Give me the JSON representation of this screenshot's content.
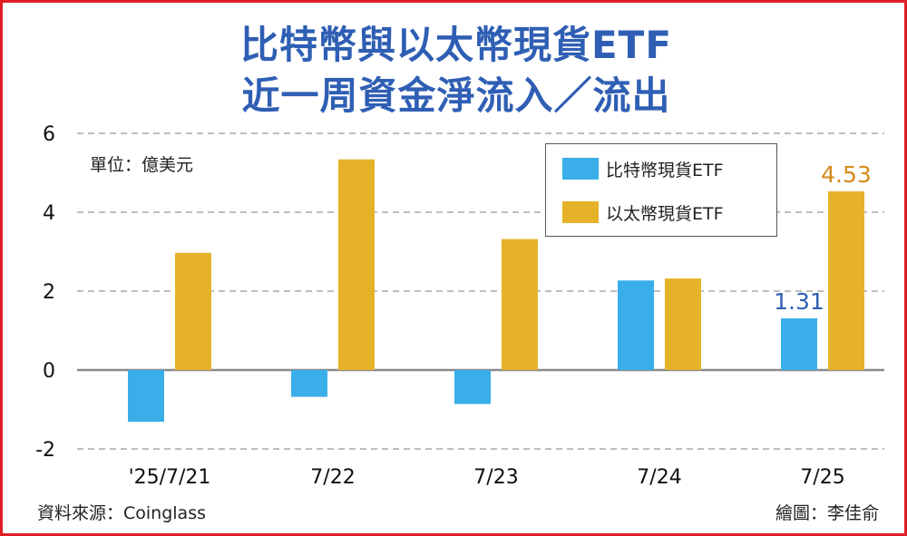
{
  "title_line1": "比特幣與以太幣現貨ETF",
  "title_line2": "近一周資金淨流入／流出",
  "unit_label": "單位：億美元",
  "source_label": "資料來源：Coinglass",
  "credit_label": "繪圖：李佳俞",
  "colors": {
    "btc": "#3aaee8",
    "eth": "#e5b22a",
    "btc_label": "#2f5fb4",
    "eth_label": "#d48a1c",
    "axis_text": "#111111"
  },
  "chart_data": {
    "type": "bar",
    "categories": [
      "'25/7/21",
      "7/22",
      "7/23",
      "7/24",
      "7/25"
    ],
    "series": [
      {
        "name": "比特幣現貨ETF",
        "values": [
          -1.31,
          -0.68,
          -0.86,
          2.27,
          1.31
        ]
      },
      {
        "name": "以太幣現貨ETF",
        "values": [
          2.97,
          5.34,
          3.32,
          2.32,
          4.53
        ]
      }
    ],
    "data_labels": [
      {
        "series": 0,
        "index": 4,
        "text": "1.31"
      },
      {
        "series": 1,
        "index": 4,
        "text": "4.53"
      }
    ],
    "yticks": [
      -2,
      0,
      2,
      4,
      6
    ],
    "ylim": [
      -2,
      6
    ],
    "grid": true,
    "legend_position": "top-right"
  }
}
